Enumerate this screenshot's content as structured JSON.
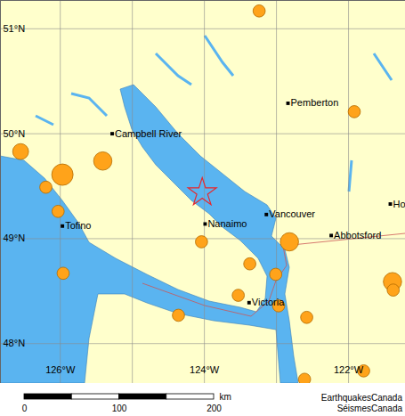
{
  "chart_data": {
    "type": "map",
    "xlim": [
      -126.83,
      -121.21
    ],
    "ylim": [
      47.62,
      51.27
    ],
    "xticks": [
      {
        "value": -126,
        "label": "126°W"
      },
      {
        "value": -125,
        "label": null
      },
      {
        "value": -124,
        "label": "124°W"
      },
      {
        "value": -123,
        "label": null
      },
      {
        "value": -122,
        "label": "122°W"
      }
    ],
    "yticks": [
      {
        "value": 48,
        "label": "48°N"
      },
      {
        "value": 49,
        "label": "49°N"
      },
      {
        "value": 50,
        "label": "50°N"
      },
      {
        "value": 51,
        "label": "51°N"
      }
    ],
    "grid": true,
    "cities": [
      {
        "name": "Campbell River",
        "lon": -125.28,
        "lat": 50.0
      },
      {
        "name": "Tofino",
        "lon": -125.97,
        "lat": 49.12
      },
      {
        "name": "Nanaimo",
        "lon": -123.99,
        "lat": 49.14
      },
      {
        "name": "Vancouver",
        "lon": -123.14,
        "lat": 49.23
      },
      {
        "name": "Abbotsford",
        "lon": -122.24,
        "lat": 49.03
      },
      {
        "name": "Victoria",
        "lon": -123.38,
        "lat": 48.39
      },
      {
        "name": "Pemberton",
        "lon": -122.84,
        "lat": 50.29
      },
      {
        "name": "Ho",
        "lon": -121.42,
        "lat": 49.33
      }
    ],
    "earthquakes": {
      "color": "#ffa31a",
      "lon": [
        -123.24,
        -126.55,
        -125.41,
        -125.97,
        -126.2,
        -126.03,
        -125.96,
        -121.92,
        -124.04,
        -122.82,
        -123.37,
        -123.01,
        -123.53,
        -122.97,
        -122.58,
        -124.36,
        -121.39,
        -121.38,
        -121.79,
        -122.61
      ],
      "lat": [
        51.17,
        49.83,
        49.74,
        49.61,
        49.49,
        49.26,
        48.67,
        50.21,
        48.97,
        48.97,
        48.76,
        48.66,
        48.46,
        48.36,
        48.25,
        48.27,
        48.59,
        48.51,
        47.74,
        47.66
      ],
      "magnitude": [
        2.0,
        2.6,
        3.0,
        3.5,
        2.0,
        2.0,
        2.0,
        2.0,
        2.0,
        3.0,
        2.0,
        2.0,
        2.0,
        2.0,
        2.0,
        2.0,
        3.0,
        2.0,
        2.0,
        2.0
      ]
    },
    "epicenter": {
      "color": "#e8262b",
      "marker": "star",
      "lon": -124.03,
      "lat": 49.44
    },
    "scale_bar": {
      "unit": "km",
      "ticks": [
        0,
        100,
        200
      ]
    },
    "credits": [
      "EarthquakesCanada",
      "SéismesCanada"
    ]
  }
}
